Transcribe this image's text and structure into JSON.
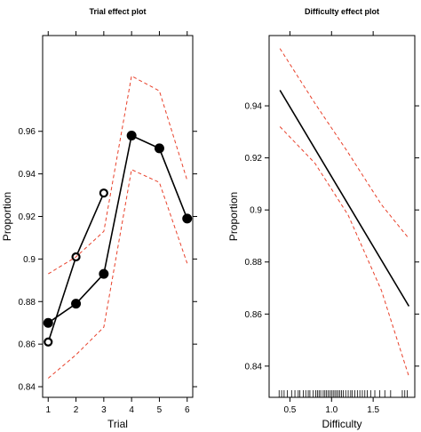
{
  "chart_data": [
    {
      "type": "line",
      "title": "Trial effect plot",
      "xlabel": "Trial",
      "ylabel": "Proportion",
      "xlim": [
        0.8,
        6.2
      ],
      "ylim": [
        0.835,
        1.005
      ],
      "x_ticks": [
        "1",
        "2",
        "3",
        "4",
        "5",
        "6"
      ],
      "y_ticks": [
        "0.84",
        "0.86",
        "0.88",
        "0.9",
        "0.92",
        "0.94",
        "0.96"
      ],
      "y_tick_values": [
        0.84,
        0.86,
        0.88,
        0.9,
        0.92,
        0.94,
        0.96
      ],
      "series": [
        {
          "style": "solid-filled-markers",
          "x": [
            1,
            2,
            3,
            4,
            5,
            6
          ],
          "y": [
            0.87,
            0.879,
            0.893,
            0.958,
            0.952,
            0.919
          ]
        },
        {
          "style": "solid-open-markers",
          "x": [
            1,
            2,
            3
          ],
          "y": [
            0.861,
            0.901,
            0.931
          ]
        },
        {
          "style": "red-dashed-upper",
          "x": [
            1,
            2,
            3,
            4,
            5,
            6
          ],
          "y": [
            0.893,
            0.901,
            0.913,
            0.986,
            0.979,
            0.937
          ]
        },
        {
          "style": "red-dashed-lower",
          "x": [
            1,
            2,
            3,
            4,
            5,
            6
          ],
          "y": [
            0.844,
            0.855,
            0.868,
            0.942,
            0.936,
            0.898
          ]
        }
      ],
      "colors": {
        "fit": "#000000",
        "ci": "#e8402a"
      }
    },
    {
      "type": "line",
      "title": "Difficulty effect plot",
      "xlabel": "Difficulty",
      "ylabel": "Proportion",
      "xlim": [
        0.25,
        2.0
      ],
      "ylim": [
        0.828,
        0.967
      ],
      "x_ticks": [
        "0.5",
        "1.0",
        "1.5"
      ],
      "x_tick_values": [
        0.5,
        1.0,
        1.5
      ],
      "y_ticks": [
        "0.84",
        "0.86",
        "0.88",
        "0.9",
        "0.92",
        "0.94"
      ],
      "y_tick_values": [
        0.84,
        0.86,
        0.88,
        0.9,
        0.92,
        0.94
      ],
      "series": [
        {
          "style": "solid-fit",
          "x": [
            0.38,
            1.93
          ],
          "y": [
            0.946,
            0.863
          ]
        },
        {
          "style": "red-dashed-upper",
          "x": [
            0.38,
            0.8,
            1.2,
            1.6,
            1.93
          ],
          "y": [
            0.962,
            0.941,
            0.922,
            0.902,
            0.889
          ]
        },
        {
          "style": "red-dashed-lower",
          "x": [
            0.38,
            0.8,
            1.2,
            1.6,
            1.93
          ],
          "y": [
            0.932,
            0.918,
            0.898,
            0.869,
            0.836
          ]
        }
      ],
      "rug_x": [
        0.37,
        0.4,
        0.43,
        0.47,
        0.52,
        0.56,
        0.6,
        0.62,
        0.66,
        0.69,
        0.72,
        0.74,
        0.78,
        0.81,
        0.83,
        0.85,
        0.87,
        0.9,
        0.92,
        0.94,
        0.96,
        0.98,
        1.0,
        1.02,
        1.04,
        1.06,
        1.08,
        1.1,
        1.12,
        1.14,
        1.17,
        1.2,
        1.23,
        1.25,
        1.28,
        1.31,
        1.34,
        1.37,
        1.4,
        1.43,
        1.47,
        1.52,
        1.58,
        1.64,
        1.71,
        1.85,
        1.88,
        1.91
      ],
      "colors": {
        "fit": "#000000",
        "ci": "#e8402a"
      }
    }
  ]
}
